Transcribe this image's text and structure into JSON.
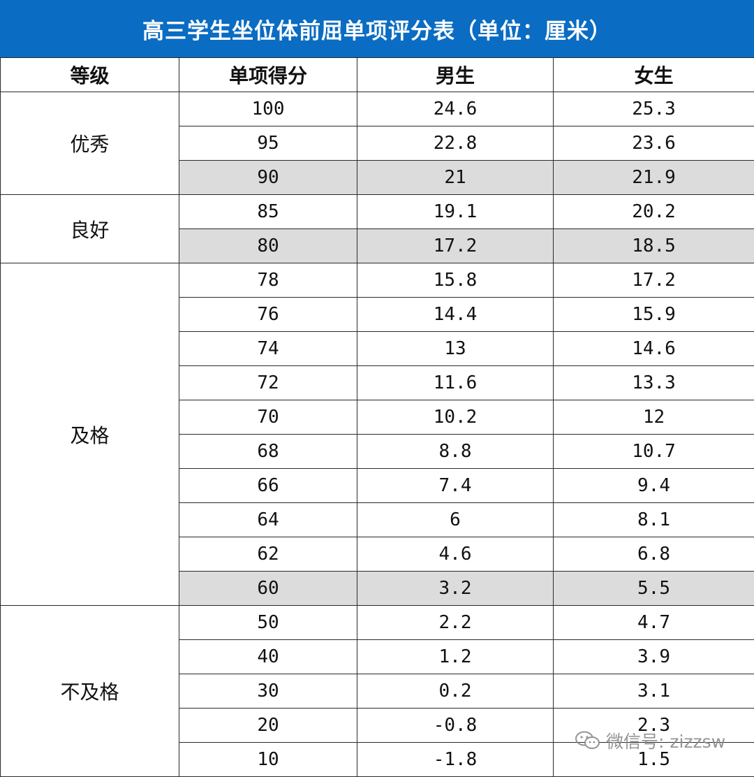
{
  "title": "高三学生坐位体前屈单项评分表（单位：厘米）",
  "headers": [
    "等级",
    "单项得分",
    "男生",
    "女生"
  ],
  "groups": [
    {
      "level": "优秀",
      "rows": [
        {
          "score": "100",
          "male": "24.6",
          "female": "25.3",
          "shaded": false
        },
        {
          "score": "95",
          "male": "22.8",
          "female": "23.6",
          "shaded": false
        },
        {
          "score": "90",
          "male": "21",
          "female": "21.9",
          "shaded": true
        }
      ]
    },
    {
      "level": "良好",
      "rows": [
        {
          "score": "85",
          "male": "19.1",
          "female": "20.2",
          "shaded": false
        },
        {
          "score": "80",
          "male": "17.2",
          "female": "18.5",
          "shaded": true
        }
      ]
    },
    {
      "level": "及格",
      "rows": [
        {
          "score": "78",
          "male": "15.8",
          "female": "17.2",
          "shaded": false
        },
        {
          "score": "76",
          "male": "14.4",
          "female": "15.9",
          "shaded": false
        },
        {
          "score": "74",
          "male": "13",
          "female": "14.6",
          "shaded": false
        },
        {
          "score": "72",
          "male": "11.6",
          "female": "13.3",
          "shaded": false
        },
        {
          "score": "70",
          "male": "10.2",
          "female": "12",
          "shaded": false
        },
        {
          "score": "68",
          "male": "8.8",
          "female": "10.7",
          "shaded": false
        },
        {
          "score": "66",
          "male": "7.4",
          "female": "9.4",
          "shaded": false
        },
        {
          "score": "64",
          "male": "6",
          "female": "8.1",
          "shaded": false
        },
        {
          "score": "62",
          "male": "4.6",
          "female": "6.8",
          "shaded": false
        },
        {
          "score": "60",
          "male": "3.2",
          "female": "5.5",
          "shaded": true
        }
      ]
    },
    {
      "level": "不及格",
      "rows": [
        {
          "score": "50",
          "male": "2.2",
          "female": "4.7",
          "shaded": false
        },
        {
          "score": "40",
          "male": "1.2",
          "female": "3.9",
          "shaded": false
        },
        {
          "score": "30",
          "male": "0.2",
          "female": "3.1",
          "shaded": false
        },
        {
          "score": "20",
          "male": "-0.8",
          "female": "2.3",
          "shaded": false
        },
        {
          "score": "10",
          "male": "-1.8",
          "female": "1.5",
          "shaded": false
        }
      ]
    }
  ],
  "watermark": {
    "icon": "wechat-icon",
    "text": "微信号: zizzsw"
  },
  "colors": {
    "title_bg": "#0a6cc2",
    "title_text": "#ffffff",
    "shaded_row": "#dcdcdc",
    "border": "#2a2a2a"
  }
}
